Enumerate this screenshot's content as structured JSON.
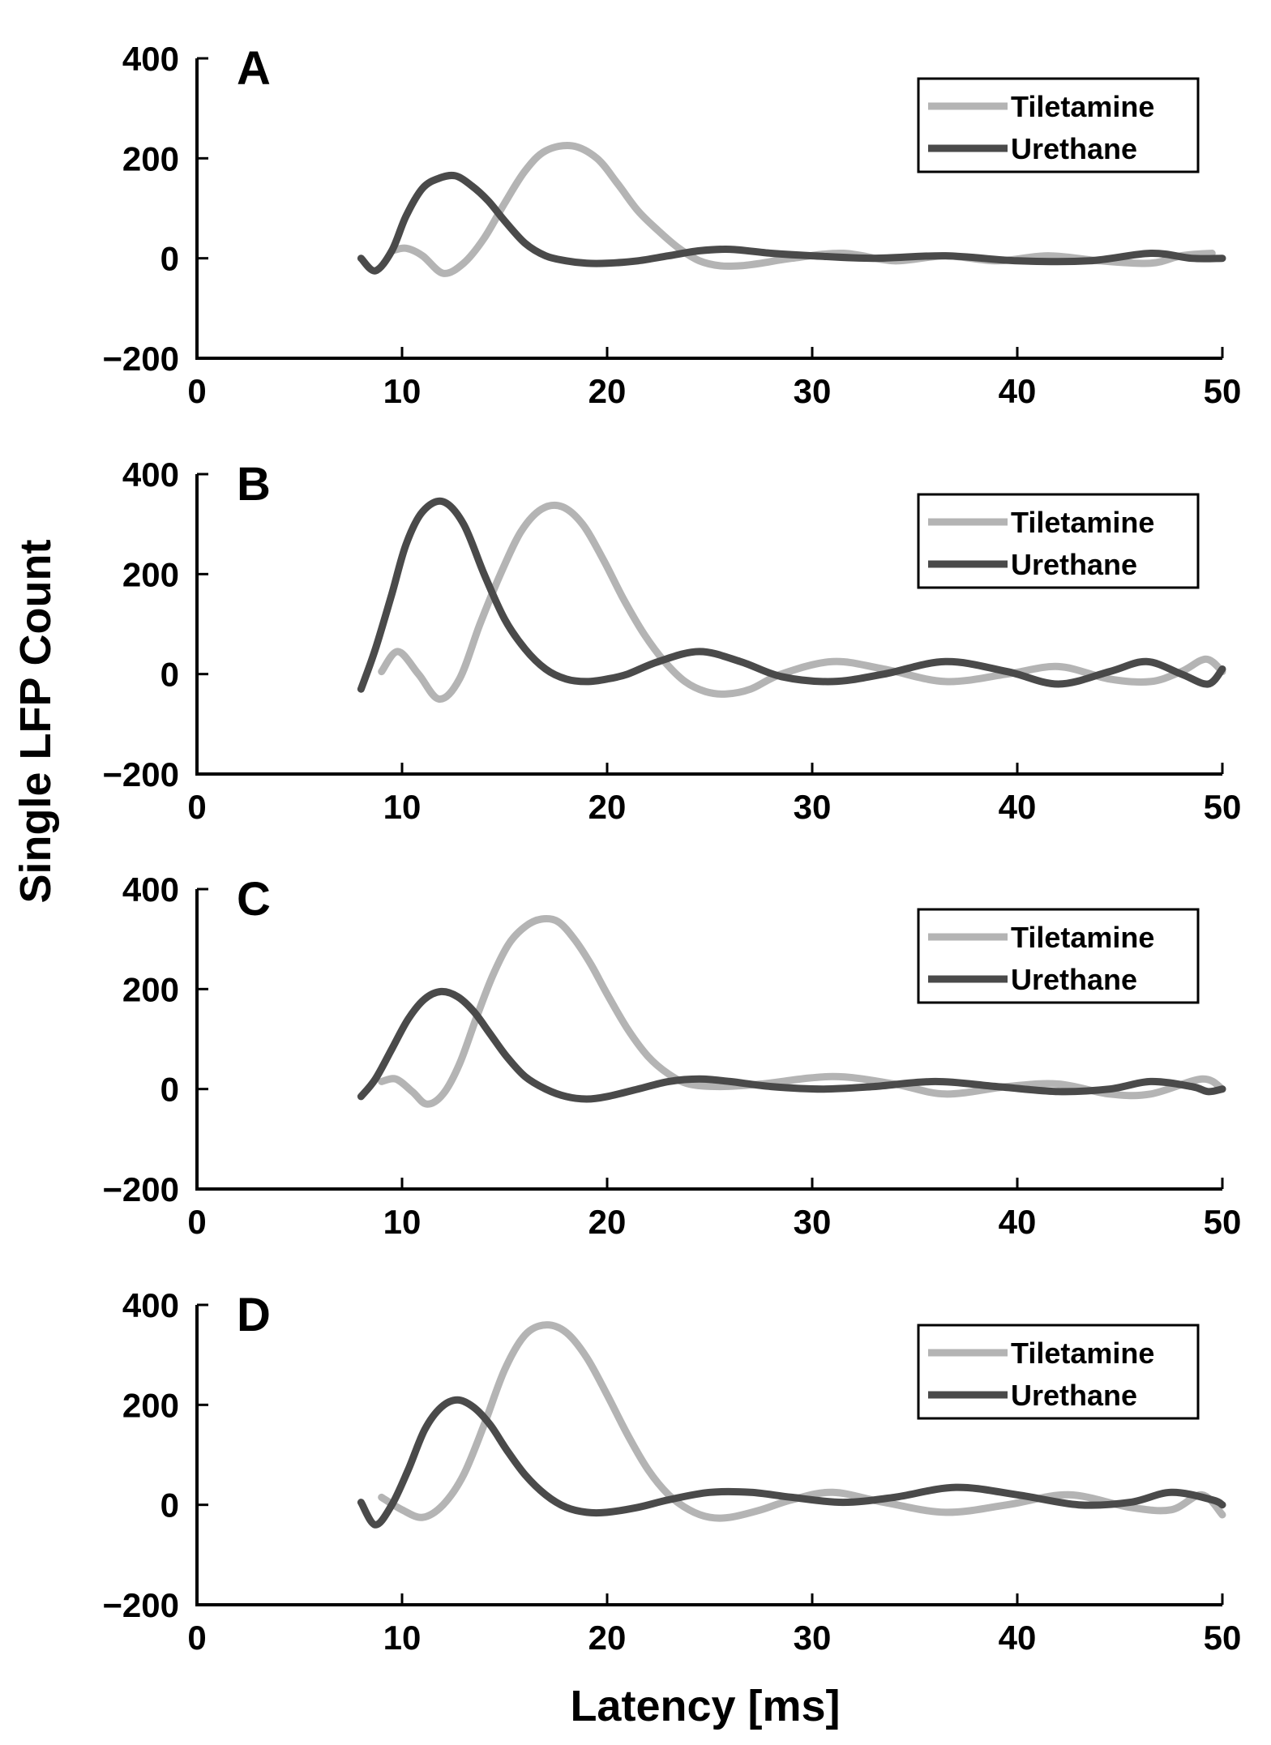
{
  "figure": {
    "ylabel": "Single LFP Count",
    "xlabel": "Latency [ms]"
  },
  "colors": {
    "tiletamine": "#b4b4b4",
    "urethane": "#4a4a4a",
    "axis": "#000000"
  },
  "chart_data": [
    {
      "type": "line",
      "panel": "A",
      "xlim": [
        0,
        50
      ],
      "ylim": [
        -200,
        400
      ],
      "xticks": [
        0,
        10,
        20,
        30,
        40,
        50
      ],
      "yticks": [
        -200,
        0,
        200,
        400
      ],
      "legend_position": "top-right",
      "series": [
        {
          "name": "Tiletamine",
          "x": [
            9.5,
            10.2,
            11.0,
            12.0,
            13.0,
            14.0,
            15.0,
            16.0,
            17.0,
            18.3,
            19.5,
            20.5,
            21.5,
            22.5,
            23.5,
            24.5,
            25.5,
            26.5,
            27.5,
            29.0,
            31.5,
            34.0,
            36.5,
            39.0,
            41.5,
            44.0,
            46.5,
            48.0,
            49.5
          ],
          "y": [
            15,
            20,
            5,
            -30,
            -10,
            40,
            110,
            175,
            215,
            225,
            200,
            150,
            95,
            55,
            20,
            -5,
            -15,
            -15,
            -10,
            0,
            10,
            -5,
            5,
            -5,
            5,
            -5,
            -10,
            5,
            10
          ]
        },
        {
          "name": "Urethane",
          "x": [
            8.0,
            8.7,
            9.5,
            10.2,
            11.0,
            11.8,
            12.6,
            13.4,
            14.2,
            15.0,
            16.0,
            17.0,
            18.0,
            19.0,
            20.0,
            21.5,
            23.0,
            24.5,
            26.0,
            28.0,
            30.0,
            33.0,
            36.5,
            40.0,
            43.5,
            46.5,
            48.5,
            50.0
          ],
          "y": [
            0,
            -25,
            15,
            85,
            140,
            160,
            165,
            145,
            115,
            75,
            30,
            5,
            -5,
            -10,
            -10,
            -5,
            5,
            15,
            18,
            10,
            5,
            0,
            5,
            -5,
            -5,
            10,
            0,
            0
          ]
        }
      ]
    },
    {
      "type": "line",
      "panel": "B",
      "xlim": [
        0,
        50
      ],
      "ylim": [
        -200,
        400
      ],
      "xticks": [
        0,
        10,
        20,
        30,
        40,
        50
      ],
      "yticks": [
        -200,
        0,
        200,
        400
      ],
      "legend_position": "top-right",
      "series": [
        {
          "name": "Tiletamine",
          "x": [
            9.0,
            9.8,
            10.8,
            11.8,
            12.8,
            13.8,
            14.8,
            15.8,
            16.8,
            17.8,
            18.8,
            19.8,
            20.8,
            21.8,
            22.8,
            23.8,
            24.8,
            25.8,
            27.0,
            28.5,
            31.0,
            33.5,
            36.5,
            39.5,
            42.0,
            44.5,
            46.5,
            48.0,
            49.2,
            50.0
          ],
          "y": [
            5,
            45,
            0,
            -50,
            -10,
            100,
            200,
            285,
            330,
            335,
            300,
            230,
            150,
            80,
            25,
            -15,
            -35,
            -40,
            -30,
            0,
            25,
            10,
            -15,
            0,
            15,
            -10,
            -15,
            5,
            30,
            5
          ]
        },
        {
          "name": "Urethane",
          "x": [
            8.0,
            8.7,
            9.5,
            10.2,
            11.0,
            12.0,
            13.0,
            14.0,
            15.0,
            16.0,
            17.0,
            18.0,
            19.0,
            20.0,
            21.0,
            22.5,
            24.5,
            26.5,
            28.5,
            31.0,
            33.5,
            36.5,
            39.5,
            42.0,
            44.5,
            46.3,
            48.0,
            49.3,
            50.0
          ],
          "y": [
            -30,
            50,
            160,
            260,
            325,
            345,
            300,
            200,
            110,
            50,
            10,
            -10,
            -15,
            -10,
            0,
            25,
            45,
            25,
            -5,
            -15,
            0,
            25,
            5,
            -20,
            5,
            25,
            0,
            -20,
            10
          ]
        }
      ]
    },
    {
      "type": "line",
      "panel": "C",
      "xlim": [
        0,
        50
      ],
      "ylim": [
        -200,
        400
      ],
      "xticks": [
        0,
        10,
        20,
        30,
        40,
        50
      ],
      "yticks": [
        -200,
        0,
        200,
        400
      ],
      "legend_position": "top-right",
      "series": [
        {
          "name": "Tiletamine",
          "x": [
            9.0,
            9.7,
            10.5,
            11.2,
            12.0,
            12.8,
            13.6,
            14.4,
            15.2,
            16.0,
            16.8,
            17.6,
            18.4,
            19.2,
            20.0,
            21.0,
            22.0,
            23.0,
            24.0,
            25.5,
            27.5,
            31.0,
            34.0,
            36.5,
            39.5,
            42.0,
            44.5,
            46.5,
            49.0,
            50.0
          ],
          "y": [
            15,
            20,
            -5,
            -30,
            -10,
            50,
            140,
            225,
            290,
            325,
            340,
            335,
            300,
            250,
            190,
            120,
            65,
            30,
            10,
            5,
            10,
            25,
            10,
            -10,
            5,
            10,
            -10,
            -10,
            20,
            0
          ]
        },
        {
          "name": "Urethane",
          "x": [
            8.0,
            8.7,
            9.5,
            10.3,
            11.1,
            11.9,
            12.7,
            13.5,
            14.3,
            15.1,
            16.0,
            17.0,
            18.0,
            19.0,
            20.0,
            21.5,
            23.0,
            24.5,
            26.0,
            28.0,
            30.5,
            33.0,
            36.0,
            39.0,
            42.0,
            44.5,
            46.5,
            48.5,
            49.3,
            50.0
          ],
          "y": [
            -15,
            20,
            80,
            140,
            180,
            195,
            185,
            155,
            110,
            65,
            25,
            0,
            -15,
            -20,
            -15,
            0,
            15,
            20,
            15,
            5,
            0,
            5,
            15,
            5,
            -5,
            0,
            15,
            5,
            -5,
            0
          ]
        }
      ]
    },
    {
      "type": "line",
      "panel": "D",
      "xlim": [
        0,
        50
      ],
      "ylim": [
        -200,
        400
      ],
      "xticks": [
        0,
        10,
        20,
        30,
        40,
        50
      ],
      "yticks": [
        -200,
        0,
        200,
        400
      ],
      "legend_position": "top-right",
      "series": [
        {
          "name": "Tiletamine",
          "x": [
            9.0,
            10.0,
            11.0,
            12.0,
            13.0,
            14.0,
            15.0,
            16.0,
            17.0,
            18.0,
            19.0,
            20.0,
            21.0,
            22.0,
            23.0,
            24.0,
            25.0,
            26.0,
            27.5,
            29.0,
            31.0,
            33.5,
            36.5,
            39.5,
            42.5,
            45.5,
            47.5,
            49.0,
            50.0
          ],
          "y": [
            15,
            -10,
            -25,
            0,
            60,
            160,
            270,
            340,
            360,
            345,
            295,
            220,
            140,
            70,
            20,
            -10,
            -25,
            -25,
            -10,
            10,
            25,
            5,
            -15,
            0,
            20,
            -5,
            -10,
            20,
            -20
          ]
        },
        {
          "name": "Urethane",
          "x": [
            8.0,
            8.7,
            9.5,
            10.3,
            11.1,
            11.9,
            12.7,
            13.5,
            14.3,
            15.1,
            16.0,
            17.0,
            18.0,
            19.0,
            20.0,
            21.5,
            23.0,
            25.0,
            27.0,
            29.0,
            31.5,
            34.0,
            37.0,
            40.0,
            43.0,
            45.5,
            47.5,
            49.5,
            50.0
          ],
          "y": [
            5,
            -40,
            0,
            70,
            150,
            195,
            210,
            195,
            160,
            110,
            60,
            20,
            -5,
            -15,
            -15,
            -5,
            10,
            25,
            25,
            15,
            5,
            15,
            35,
            20,
            0,
            5,
            25,
            10,
            0
          ]
        }
      ]
    }
  ]
}
